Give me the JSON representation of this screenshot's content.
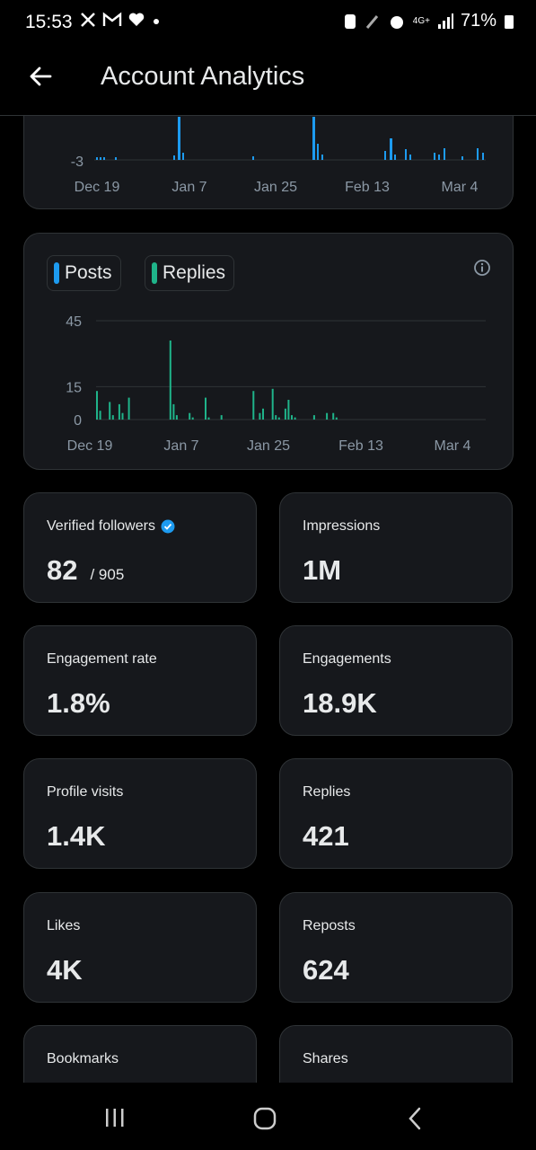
{
  "status_bar": {
    "time": "15:53",
    "battery": "71%",
    "network": "4G+"
  },
  "header": {
    "title": "Account Analytics"
  },
  "top_chart": {
    "ytick": "-3",
    "xticks": [
      "Dec 19",
      "Jan 7",
      "Jan 25",
      "Feb 13",
      "Mar 4"
    ]
  },
  "chart_data": {
    "type": "bar",
    "legend": [
      "Posts",
      "Replies"
    ],
    "series": [
      {
        "name": "Replies",
        "color": "#1fb48a",
        "values": [
          13,
          4,
          0,
          0,
          8,
          2,
          0,
          7,
          3,
          0,
          10,
          0,
          0,
          0,
          0,
          0,
          0,
          0,
          0,
          0,
          0,
          0,
          0,
          36,
          7,
          2,
          0,
          0,
          0,
          3,
          1,
          0,
          0,
          0,
          10,
          1,
          0,
          0,
          0,
          2,
          0,
          0,
          0,
          0,
          0,
          0,
          0,
          0,
          0,
          13,
          0,
          3,
          5,
          0,
          0,
          14,
          2,
          1,
          0,
          5,
          9,
          2,
          1,
          0,
          0,
          0,
          0,
          0,
          2,
          0,
          0,
          0,
          3,
          0,
          3,
          1,
          0,
          0,
          0,
          0,
          0,
          0,
          0,
          0,
          0,
          0,
          0,
          0,
          0,
          0,
          0,
          0,
          0,
          0,
          0,
          0,
          0,
          0,
          0,
          0,
          0,
          0,
          0,
          0,
          0,
          0,
          0,
          0,
          0,
          0,
          0,
          0,
          0,
          0,
          0,
          0,
          0,
          0,
          0,
          0,
          0,
          0
        ]
      }
    ],
    "yticks": [
      "45",
      "15",
      "0"
    ],
    "ylim": [
      0,
      45
    ],
    "xticks": [
      "Dec 19",
      "Jan 7",
      "Jan 25",
      "Feb 13",
      "Mar 4"
    ]
  },
  "stats": [
    {
      "label": "Verified followers",
      "value": "82",
      "sub": "/ 905"
    },
    {
      "label": "Impressions",
      "value": "1M"
    },
    {
      "label": "Engagement rate",
      "value": "1.8%"
    },
    {
      "label": "Engagements",
      "value": "18.9K"
    },
    {
      "label": "Profile visits",
      "value": "1.4K"
    },
    {
      "label": "Replies",
      "value": "421"
    },
    {
      "label": "Likes",
      "value": "4K"
    },
    {
      "label": "Reposts",
      "value": "624"
    },
    {
      "label": "Bookmarks",
      "value": ""
    },
    {
      "label": "Shares",
      "value": ""
    }
  ],
  "colors": {
    "posts": "#1d9bf0",
    "replies": "#1fb48a",
    "verified": "#1d9bf0"
  }
}
